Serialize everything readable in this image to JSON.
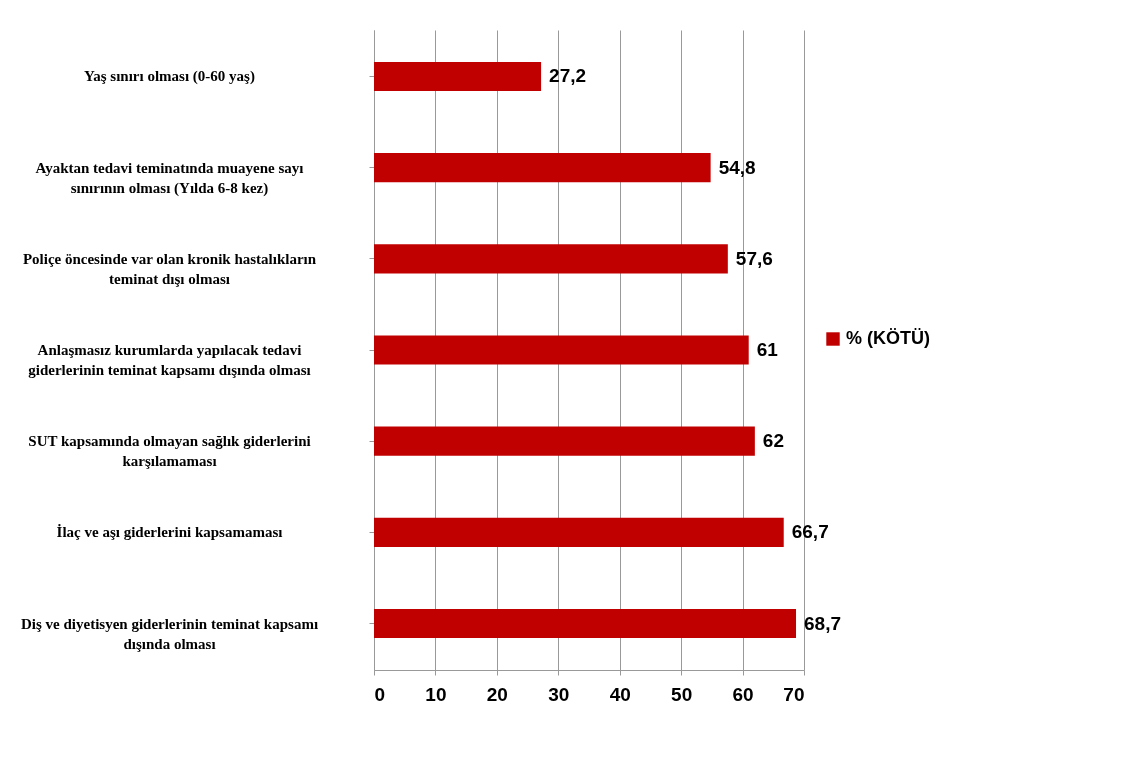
{
  "chart_data": {
    "type": "bar",
    "orientation": "horizontal",
    "categories": [
      "Yaş sınırı olması (0-60 yaş)",
      "Ayaktan tedavi teminatında muayene sayı sınırının olması (Yılda 6-8 kez)",
      "Poliçe öncesinde var olan kronik hastalıkların teminat dışı olması",
      "Anlaşmasız kurumlarda yapılacak tedavi giderlerinin teminat kapsamı dışında olması",
      "SUT kapsamında olmayan sağlık giderlerini karşılamaması",
      "İlaç ve aşı giderlerini kapsamaması",
      "Diş ve diyetisyen giderlerinin teminat kapsamı dışında olması"
    ],
    "series": [
      {
        "name": "% (KÖTÜ)",
        "color": "#c00000",
        "values": [
          27.2,
          54.8,
          57.6,
          61,
          62,
          66.7,
          68.7
        ],
        "value_labels": [
          "27,2",
          "54,8",
          "57,6",
          "61",
          "62",
          "66,7",
          "68,7"
        ]
      }
    ],
    "xlim": [
      0,
      70
    ],
    "xticks": [
      0,
      10,
      20,
      30,
      40,
      50,
      60,
      70
    ],
    "grid": "x",
    "legend": "right"
  }
}
